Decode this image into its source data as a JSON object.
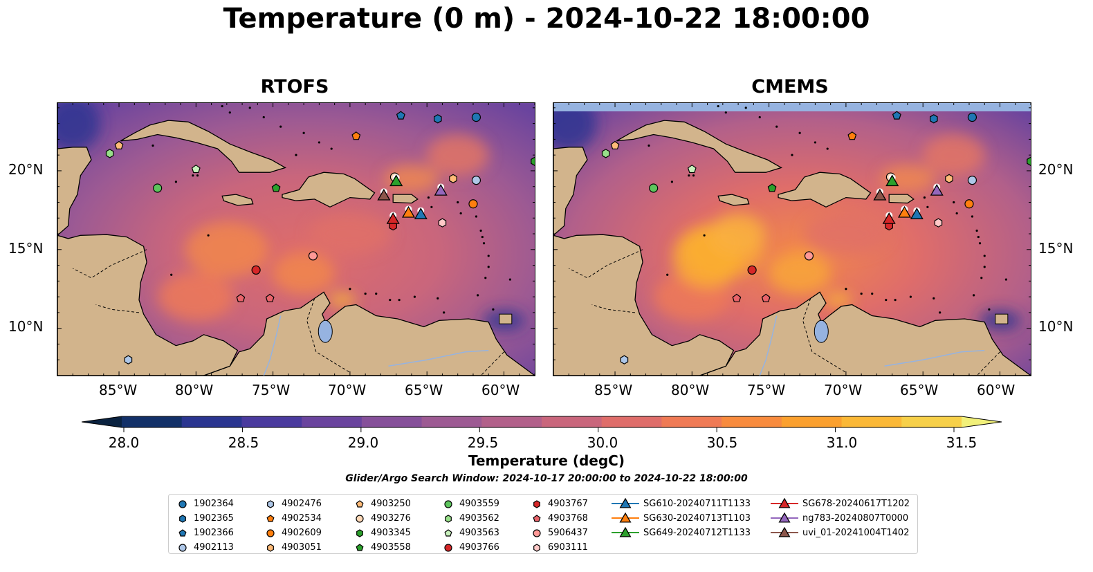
{
  "title": "Temperature (0 m) - 2024-10-22 18:00:00",
  "panels": [
    {
      "title": "RTOFS"
    },
    {
      "title": "CMEMS"
    }
  ],
  "axes": {
    "lon_ticks": [
      "85°W",
      "80°W",
      "75°W",
      "70°W",
      "65°W",
      "60°W"
    ],
    "lat_ticks": [
      "20°N",
      "15°N",
      "10°N"
    ],
    "lon_range": [
      -89,
      -58
    ],
    "lat_range": [
      7,
      24.3
    ]
  },
  "colorbar": {
    "label": "Temperature (degC)",
    "min": 28.0,
    "max": 31.5,
    "ticks": [
      "28.0",
      "28.5",
      "29.0",
      "29.5",
      "30.0",
      "30.5",
      "31.0",
      "31.5"
    ],
    "colors": [
      "#0a2240",
      "#123068",
      "#2a3590",
      "#4a3a9e",
      "#6a449e",
      "#86509a",
      "#9d5a93",
      "#b2608a",
      "#c9667c",
      "#df6d6a",
      "#ef7a55",
      "#f88b3e",
      "#fba02e",
      "#fbb836",
      "#f7d049",
      "#f1f07a"
    ]
  },
  "search_window": "Glider/Argo Search Window: 2024-10-17 20:00:00 to 2024-10-22 18:00:00",
  "legend": [
    {
      "label": "1902364",
      "marker": "circle",
      "color": "#1f77b4"
    },
    {
      "label": "1902365",
      "marker": "hexagon",
      "color": "#1f77b4"
    },
    {
      "label": "1902366",
      "marker": "pentagon",
      "color": "#1f77b4"
    },
    {
      "label": "4902113",
      "marker": "circle",
      "color": "#aec7e8"
    },
    {
      "label": "4902476",
      "marker": "hexagon",
      "color": "#aec7e8"
    },
    {
      "label": "4902534",
      "marker": "pentagon",
      "color": "#ff7f0e"
    },
    {
      "label": "4902609",
      "marker": "circle",
      "color": "#ff7f0e"
    },
    {
      "label": "4903051",
      "marker": "hexagon",
      "color": "#ffbb78"
    },
    {
      "label": "4903250",
      "marker": "pentagon",
      "color": "#ffbb78"
    },
    {
      "label": "4903276",
      "marker": "circle",
      "color": "#ffd9b8"
    },
    {
      "label": "4903345",
      "marker": "hexagon",
      "color": "#2ca02c"
    },
    {
      "label": "4903558",
      "marker": "pentagon",
      "color": "#2ca02c"
    },
    {
      "label": "4903559",
      "marker": "circle",
      "color": "#5dc55d"
    },
    {
      "label": "4903562",
      "marker": "hexagon",
      "color": "#98df8a"
    },
    {
      "label": "4903563",
      "marker": "pentagon",
      "color": "#c9f2bd"
    },
    {
      "label": "4903766",
      "marker": "circle",
      "color": "#d62728"
    },
    {
      "label": "4903767",
      "marker": "hexagon",
      "color": "#d62728"
    },
    {
      "label": "4903768",
      "marker": "pentagon",
      "color": "#e8636a"
    },
    {
      "label": "5906437",
      "marker": "circle",
      "color": "#ff9896"
    },
    {
      "label": "6903111",
      "marker": "hexagon",
      "color": "#ffc9c8"
    },
    {
      "label": "SG610-20240711T1133",
      "marker": "triangle",
      "color": "#1f77b4"
    },
    {
      "label": "SG630-20240713T1103",
      "marker": "triangle",
      "color": "#ff7f0e"
    },
    {
      "label": "SG649-20240712T1133",
      "marker": "triangle",
      "color": "#2ca02c"
    },
    {
      "label": "SG678-20240617T1202",
      "marker": "triangle",
      "color": "#d62728"
    },
    {
      "label": "ng783-20240807T0000",
      "marker": "triangle",
      "color": "#9467bd"
    },
    {
      "label": "uvi_01-20241004T1402",
      "marker": "triangle",
      "color": "#8c564b"
    }
  ],
  "observations": [
    {
      "id": "1902364",
      "lon": -61.8,
      "lat": 23.4
    },
    {
      "id": "1902365",
      "lon": -64.3,
      "lat": 23.3
    },
    {
      "id": "1902366",
      "lon": -66.7,
      "lat": 23.5
    },
    {
      "id": "4902113",
      "lon": -61.8,
      "lat": 19.4
    },
    {
      "id": "4902476",
      "lon": -84.4,
      "lat": 8.0
    },
    {
      "id": "4902534",
      "lon": -69.6,
      "lat": 22.2
    },
    {
      "id": "4902609",
      "lon": -62.0,
      "lat": 17.9
    },
    {
      "id": "4903051",
      "lon": -63.3,
      "lat": 19.5
    },
    {
      "id": "4903250",
      "lon": -85.0,
      "lat": 21.6
    },
    {
      "id": "4903276",
      "lon": -67.1,
      "lat": 19.6
    },
    {
      "id": "4903345",
      "lon": -58.0,
      "lat": 20.6
    },
    {
      "id": "4903558",
      "lon": -74.8,
      "lat": 18.9
    },
    {
      "id": "4903559",
      "lon": -82.5,
      "lat": 18.9
    },
    {
      "id": "4903562",
      "lon": -85.6,
      "lat": 21.1
    },
    {
      "id": "4903563",
      "lon": -80.0,
      "lat": 20.1
    },
    {
      "id": "4903766",
      "lon": -76.1,
      "lat": 13.7
    },
    {
      "id": "4903767",
      "lon": -67.2,
      "lat": 16.5
    },
    {
      "id": "4903768",
      "lon": -77.1,
      "lat": 11.9
    },
    {
      "id": "5906437",
      "lon": -72.4,
      "lat": 14.6
    },
    {
      "id": "6903111",
      "lon": -64.0,
      "lat": 16.7
    },
    {
      "id": "4903768b",
      "lon": -75.2,
      "lat": 11.9
    },
    {
      "id": "SG610-20240711T1133",
      "lon": -65.4,
      "lat": 17.2
    },
    {
      "id": "SG630-20240713T1103",
      "lon": -66.2,
      "lat": 17.3
    },
    {
      "id": "SG649-20240712T1133",
      "lon": -67.0,
      "lat": 19.3
    },
    {
      "id": "SG678-20240617T1202",
      "lon": -67.2,
      "lat": 16.9
    },
    {
      "id": "ng783-20240807T0000",
      "lon": -64.1,
      "lat": 18.7
    },
    {
      "id": "uvi_01-20241004T1402",
      "lon": -67.8,
      "lat": 18.4
    }
  ]
}
